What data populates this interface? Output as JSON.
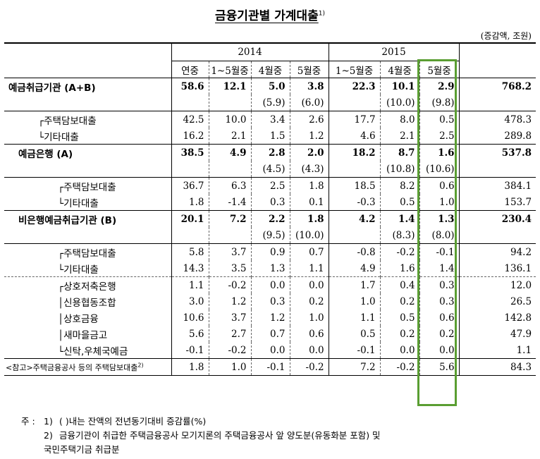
{
  "title": "금융기관별 가계대출",
  "title_sup": "1)",
  "unit": "(증감액, 조원)",
  "header": {
    "year1": "2014",
    "year2": "2015",
    "cols": [
      "연중",
      "1~5월중",
      "4월중",
      "5월중",
      "1~5월중",
      "4월중",
      "5월중",
      "잔 액(5월말)"
    ]
  },
  "rows": [
    {
      "label": "예금취급기관 (A+B)",
      "values": [
        "58.6",
        "12.1",
        "5.0",
        "3.8",
        "22.3",
        "10.1",
        "2.9",
        "768.2"
      ],
      "paren": [
        "",
        "",
        "(5.9)",
        "(6.0)",
        "",
        "(10.0)",
        "(9.8)",
        ""
      ]
    },
    {
      "label": "┌주택담보대출",
      "values": [
        "42.5",
        "10.0",
        "3.4",
        "2.6",
        "17.7",
        "8.0",
        "0.5",
        "478.3"
      ]
    },
    {
      "label": "└기타대출",
      "values": [
        "16.2",
        "2.1",
        "1.5",
        "1.2",
        "4.6",
        "2.1",
        "2.5",
        "289.8"
      ]
    },
    {
      "label": "예금은행 (A)",
      "values": [
        "38.5",
        "4.9",
        "2.8",
        "2.0",
        "18.2",
        "8.7",
        "1.6",
        "537.8"
      ],
      "paren": [
        "",
        "",
        "(4.5)",
        "(4.3)",
        "",
        "(10.8)",
        "(10.6)",
        ""
      ]
    },
    {
      "label": "┌주택담보대출",
      "values": [
        "36.7",
        "6.3",
        "2.5",
        "1.8",
        "18.5",
        "8.2",
        "0.6",
        "384.1"
      ]
    },
    {
      "label": "└기타대출",
      "values": [
        "1.8",
        "-1.4",
        "0.3",
        "0.1",
        "-0.3",
        "0.5",
        "1.0",
        "153.7"
      ]
    },
    {
      "label": "비은행예금취급기관 (B)",
      "values": [
        "20.1",
        "7.2",
        "2.2",
        "1.8",
        "4.2",
        "1.4",
        "1.3",
        "230.4"
      ],
      "paren": [
        "",
        "",
        "(9.5)",
        "(10.0)",
        "",
        "(8.3)",
        "(8.0)",
        ""
      ]
    },
    {
      "label": "┌주택담보대출",
      "values": [
        "5.8",
        "3.7",
        "0.9",
        "0.7",
        "-0.8",
        "-0.2",
        "-0.1",
        "94.2"
      ]
    },
    {
      "label": "└기타대출",
      "values": [
        "14.3",
        "3.5",
        "1.3",
        "1.1",
        "4.9",
        "1.6",
        "1.4",
        "136.1"
      ]
    },
    {
      "label": "┌상호저축은행",
      "values": [
        "1.1",
        "-0.2",
        "0.0",
        "0.0",
        "1.7",
        "0.4",
        "0.3",
        "12.0"
      ]
    },
    {
      "label": "│신용협동조합",
      "values": [
        "3.0",
        "1.2",
        "0.3",
        "0.2",
        "1.0",
        "0.2",
        "0.3",
        "26.5"
      ]
    },
    {
      "label": "│상호금융",
      "values": [
        "10.6",
        "3.7",
        "1.2",
        "1.0",
        "1.1",
        "0.5",
        "0.6",
        "142.8"
      ]
    },
    {
      "label": "│새마을금고",
      "values": [
        "5.6",
        "2.7",
        "0.7",
        "0.6",
        "0.5",
        "0.2",
        "0.2",
        "47.9"
      ]
    },
    {
      "label": "└신탁,우체국예금",
      "values": [
        "-0.1",
        "-0.2",
        "0.0",
        "0.0",
        "-0.1",
        "0.0",
        "0.0",
        "1.1"
      ]
    },
    {
      "label": "<참고>주택금융공사 등의 주택담보대출",
      "label_sup": "2)",
      "values": [
        "1.8",
        "1.0",
        "-0.1",
        "-0.2",
        "7.2",
        "-0.2",
        "5.6",
        "84.3"
      ]
    }
  ],
  "notes": {
    "prefix": "주 :",
    "n1_num": "1)",
    "n1_text": "(      )내는 잔액의 전년동기대비 증감률(%)",
    "n2_num": "2)",
    "n2_text": "금융기관이 취급한 주택금융공사 모기지론의 주택금융공사 앞 양도분(유동화분 포함) 및",
    "n2_text2": "국민주택기금 취급분"
  },
  "colors": {
    "highlight": "#5a9e32"
  }
}
